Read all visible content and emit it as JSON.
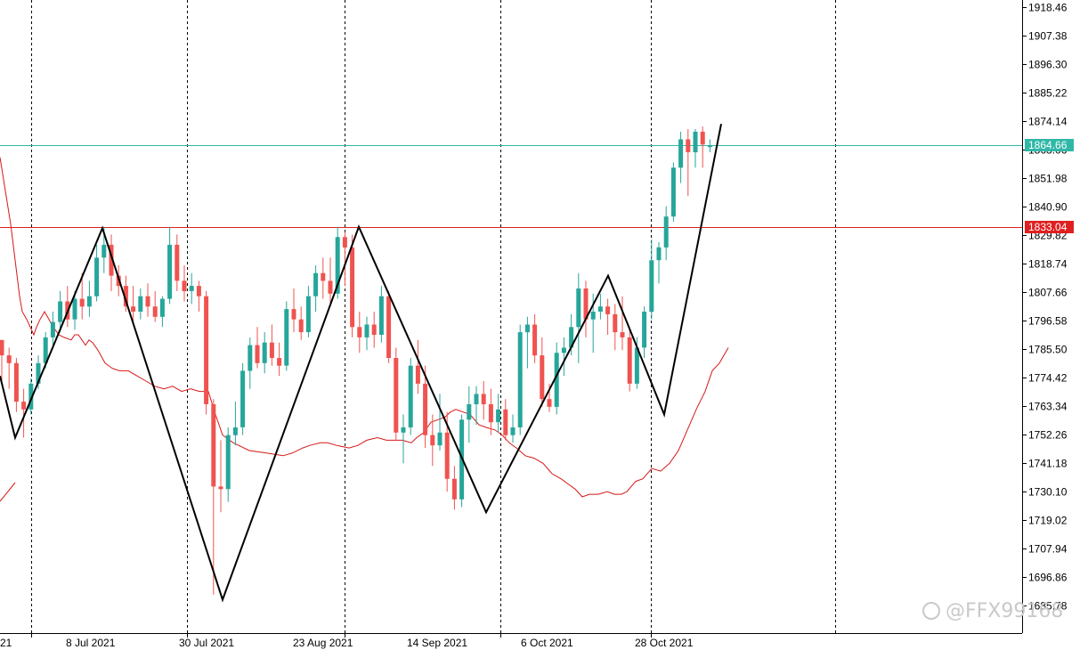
{
  "chart_data": {
    "type": "candlestick",
    "y_axis": {
      "ticks": [
        "1918.46",
        "1907.38",
        "1896.30",
        "1885.22",
        "1874.14",
        "1863.06",
        "1851.98",
        "1840.90",
        "1829.82",
        "1818.74",
        "1807.66",
        "1796.58",
        "1785.50",
        "1774.42",
        "1763.34",
        "1752.26",
        "1741.18",
        "1730.10",
        "1719.02",
        "1707.94",
        "1696.86",
        "1685.78"
      ],
      "ylim": [
        1683.0,
        1919.5
      ]
    },
    "x_axis": {
      "labels": [
        "21",
        "8 Jul 2021",
        "30 Jul 2021",
        "23 Aug 2021",
        "14 Sep 2021",
        "6 Oct 2021",
        "28 Oct 2021"
      ]
    },
    "grid": "vertical dashed",
    "candles": [
      [
        1789,
        1789,
        1773,
        1783
      ],
      [
        1783,
        1786,
        1770,
        1780
      ],
      [
        1780,
        1782,
        1761,
        1765
      ],
      [
        1765,
        1770,
        1751,
        1762
      ],
      [
        1762,
        1774,
        1760,
        1772
      ],
      [
        1772,
        1783,
        1770,
        1780
      ],
      [
        1780,
        1792,
        1778,
        1790
      ],
      [
        1790,
        1800,
        1787,
        1796
      ],
      [
        1796,
        1808,
        1792,
        1804
      ],
      [
        1804,
        1810,
        1794,
        1797
      ],
      [
        1797,
        1808,
        1793,
        1805
      ],
      [
        1805,
        1815,
        1797,
        1802
      ],
      [
        1802,
        1812,
        1798,
        1806
      ],
      [
        1806,
        1826,
        1804,
        1821
      ],
      [
        1821,
        1833,
        1815,
        1826
      ],
      [
        1826,
        1830,
        1808,
        1814
      ],
      [
        1814,
        1818,
        1806,
        1810
      ],
      [
        1810,
        1814,
        1800,
        1802
      ],
      [
        1802,
        1810,
        1796,
        1800
      ],
      [
        1800,
        1809,
        1797,
        1806
      ],
      [
        1806,
        1811,
        1798,
        1802
      ],
      [
        1802,
        1808,
        1796,
        1798
      ],
      [
        1798,
        1806,
        1794,
        1805
      ],
      [
        1805,
        1833,
        1803,
        1826
      ],
      [
        1826,
        1830,
        1808,
        1812
      ],
      [
        1812,
        1818,
        1804,
        1808
      ],
      [
        1808,
        1815,
        1803,
        1810
      ],
      [
        1810,
        1812,
        1800,
        1806
      ],
      [
        1806,
        1808,
        1760,
        1764
      ],
      [
        1764,
        1766,
        1690,
        1732
      ],
      [
        1732,
        1750,
        1722,
        1731
      ],
      [
        1731,
        1755,
        1726,
        1752
      ],
      [
        1752,
        1765,
        1748,
        1755
      ],
      [
        1755,
        1780,
        1752,
        1777
      ],
      [
        1777,
        1790,
        1770,
        1787
      ],
      [
        1787,
        1794,
        1778,
        1780
      ],
      [
        1780,
        1792,
        1776,
        1788
      ],
      [
        1788,
        1795,
        1779,
        1782
      ],
      [
        1782,
        1788,
        1775,
        1779
      ],
      [
        1779,
        1804,
        1777,
        1801
      ],
      [
        1801,
        1809,
        1792,
        1797
      ],
      [
        1797,
        1802,
        1789,
        1792
      ],
      [
        1792,
        1810,
        1790,
        1806
      ],
      [
        1806,
        1818,
        1800,
        1815
      ],
      [
        1815,
        1821,
        1805,
        1812
      ],
      [
        1812,
        1821,
        1803,
        1807
      ],
      [
        1807,
        1833,
        1805,
        1829
      ],
      [
        1829,
        1831,
        1810,
        1825
      ],
      [
        1825,
        1830,
        1790,
        1794
      ],
      [
        1794,
        1800,
        1784,
        1790
      ],
      [
        1790,
        1798,
        1785,
        1795
      ],
      [
        1795,
        1800,
        1786,
        1791
      ],
      [
        1791,
        1810,
        1788,
        1806
      ],
      [
        1806,
        1808,
        1780,
        1782
      ],
      [
        1782,
        1786,
        1750,
        1753
      ],
      [
        1753,
        1760,
        1741,
        1755
      ],
      [
        1755,
        1782,
        1752,
        1779
      ],
      [
        1779,
        1789,
        1768,
        1772
      ],
      [
        1772,
        1779,
        1747,
        1752
      ],
      [
        1752,
        1760,
        1740,
        1748
      ],
      [
        1748,
        1768,
        1746,
        1753
      ],
      [
        1753,
        1761,
        1730,
        1735
      ],
      [
        1735,
        1740,
        1723,
        1727
      ],
      [
        1727,
        1760,
        1724,
        1758
      ],
      [
        1758,
        1771,
        1749,
        1764
      ],
      [
        1764,
        1771,
        1756,
        1768
      ],
      [
        1768,
        1773,
        1758,
        1764
      ],
      [
        1764,
        1770,
        1752,
        1757
      ],
      [
        1757,
        1768,
        1753,
        1762
      ],
      [
        1762,
        1766,
        1750,
        1752
      ],
      [
        1752,
        1760,
        1749,
        1755
      ],
      [
        1755,
        1795,
        1752,
        1792
      ],
      [
        1792,
        1798,
        1778,
        1795
      ],
      [
        1795,
        1799,
        1780,
        1783
      ],
      [
        1783,
        1790,
        1763,
        1766
      ],
      [
        1766,
        1772,
        1761,
        1763
      ],
      [
        1763,
        1788,
        1760,
        1784
      ],
      [
        1784,
        1790,
        1775,
        1786
      ],
      [
        1786,
        1799,
        1783,
        1794
      ],
      [
        1794,
        1815,
        1780,
        1809
      ],
      [
        1809,
        1812,
        1790,
        1797
      ],
      [
        1797,
        1807,
        1784,
        1800
      ],
      [
        1800,
        1807,
        1797,
        1802
      ],
      [
        1802,
        1805,
        1791,
        1799
      ],
      [
        1799,
        1803,
        1785,
        1792
      ],
      [
        1792,
        1806,
        1785,
        1790
      ],
      [
        1790,
        1793,
        1769,
        1772
      ],
      [
        1772,
        1790,
        1770,
        1786
      ],
      [
        1786,
        1802,
        1782,
        1800
      ],
      [
        1800,
        1828,
        1797,
        1820
      ],
      [
        1820,
        1827,
        1811,
        1825
      ],
      [
        1825,
        1841,
        1820,
        1837
      ],
      [
        1837,
        1858,
        1835,
        1856
      ],
      [
        1856,
        1870,
        1850,
        1867
      ],
      [
        1867,
        1871,
        1845,
        1862
      ],
      [
        1862,
        1871,
        1856,
        1870
      ],
      [
        1870,
        1872,
        1856,
        1865
      ],
      [
        1864,
        1867,
        1862,
        1864.66
      ]
    ],
    "moving_average": [
      [
        0,
        1860
      ],
      [
        12,
        1834
      ],
      [
        22,
        1806
      ],
      [
        25,
        1800
      ],
      [
        30,
        1797
      ],
      [
        38,
        1791
      ],
      [
        41,
        1794
      ],
      [
        45,
        1797
      ],
      [
        50,
        1800
      ],
      [
        55,
        1797
      ],
      [
        58,
        1795
      ],
      [
        66,
        1791
      ],
      [
        72,
        1790
      ],
      [
        80,
        1789
      ],
      [
        84,
        1791
      ],
      [
        88,
        1791
      ],
      [
        92,
        1789
      ],
      [
        96,
        1787
      ],
      [
        100,
        1789
      ],
      [
        104,
        1788
      ],
      [
        110,
        1785
      ],
      [
        118,
        1780
      ],
      [
        126,
        1778
      ],
      [
        134,
        1777
      ],
      [
        144,
        1777
      ],
      [
        154,
        1775
      ],
      [
        164,
        1773
      ],
      [
        174,
        1771
      ],
      [
        184,
        1770
      ],
      [
        194,
        1771
      ],
      [
        204,
        1769
      ],
      [
        214,
        1770
      ],
      [
        224,
        1769
      ],
      [
        234,
        1769
      ],
      [
        242,
        1760
      ],
      [
        250,
        1752
      ],
      [
        262,
        1749
      ],
      [
        280,
        1746
      ],
      [
        300,
        1745
      ],
      [
        318,
        1744
      ],
      [
        328,
        1745
      ],
      [
        340,
        1747
      ],
      [
        348,
        1748
      ],
      [
        360,
        1749
      ],
      [
        368,
        1749
      ],
      [
        378,
        1748
      ],
      [
        392,
        1747
      ],
      [
        402,
        1748
      ],
      [
        412,
        1750
      ],
      [
        424,
        1751
      ],
      [
        434,
        1750
      ],
      [
        444,
        1750
      ],
      [
        452,
        1750
      ],
      [
        462,
        1749
      ],
      [
        468,
        1751
      ],
      [
        476,
        1753
      ],
      [
        484,
        1757
      ],
      [
        492,
        1758
      ],
      [
        500,
        1759
      ],
      [
        506,
        1761
      ],
      [
        512,
        1762
      ],
      [
        520,
        1761
      ],
      [
        528,
        1760
      ],
      [
        538,
        1756
      ],
      [
        546,
        1755
      ],
      [
        556,
        1754
      ],
      [
        564,
        1752
      ],
      [
        572,
        1749
      ],
      [
        580,
        1747
      ],
      [
        590,
        1744
      ],
      [
        600,
        1743
      ],
      [
        610,
        1741
      ],
      [
        620,
        1737
      ],
      [
        630,
        1735
      ],
      [
        638,
        1733
      ],
      [
        646,
        1731
      ],
      [
        654,
        1728
      ],
      [
        662,
        1729
      ],
      [
        672,
        1729
      ],
      [
        682,
        1730
      ],
      [
        690,
        1729
      ],
      [
        698,
        1729
      ],
      [
        704,
        1730
      ],
      [
        714,
        1734
      ],
      [
        722,
        1735
      ],
      [
        732,
        1739
      ],
      [
        742,
        1738
      ],
      [
        752,
        1741
      ],
      [
        762,
        1746
      ],
      [
        772,
        1754
      ],
      [
        782,
        1762
      ],
      [
        792,
        1769
      ],
      [
        800,
        1777
      ],
      [
        808,
        1780
      ],
      [
        818,
        1786
      ]
    ],
    "zigzag": [
      [
        0,
        1775
      ],
      [
        17,
        1751
      ],
      [
        115,
        1832.5
      ],
      [
        250,
        1688
      ],
      [
        403,
        1833
      ],
      [
        546,
        1722
      ],
      [
        683,
        1814
      ],
      [
        746,
        1760
      ],
      [
        810,
        1873
      ]
    ],
    "horizontal_lines": [
      {
        "value": 1864.66,
        "label": "1864.66",
        "color": "#30b7a7"
      },
      {
        "value": 1833.04,
        "label": "1833.04",
        "color": "#e02020"
      }
    ],
    "colors": {
      "bull": "#26a69a",
      "bear": "#ef5350",
      "zigzag": "#000000",
      "moving_average": "#d61818",
      "grid": "#000000",
      "axis": "#000000"
    }
  },
  "watermark": {
    "text": "@FFX99168",
    "icon": "weibo-icon"
  }
}
